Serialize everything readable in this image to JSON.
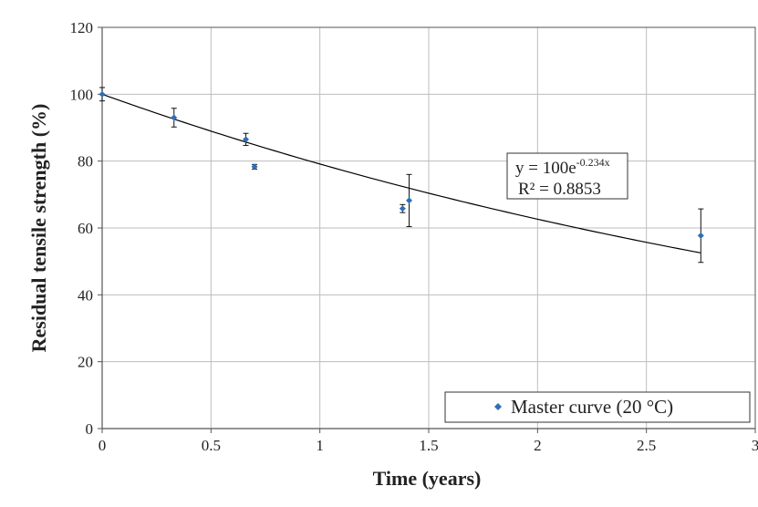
{
  "chart_data": {
    "type": "scatter",
    "xlabel": "Time (years)",
    "ylabel": "Residual tensile strength (%)",
    "xlim": [
      0,
      3
    ],
    "ylim": [
      0,
      120
    ],
    "x_ticks": [
      "0",
      "0.5",
      "1",
      "1.5",
      "2",
      "2.5",
      "3"
    ],
    "y_ticks": [
      "0",
      "20",
      "40",
      "60",
      "80",
      "100",
      "120"
    ],
    "grid": true,
    "legend_position": "bottom-right",
    "colors": {
      "marker": "#2e6fb7",
      "trendline": "#000000",
      "grid": "#bdbdbd"
    },
    "series": [
      {
        "name": "Master curve (20 °C)",
        "points": [
          {
            "x": 0.0,
            "y": 100.0,
            "err": 2.0
          },
          {
            "x": 0.33,
            "y": 93.0,
            "err": 2.8
          },
          {
            "x": 0.66,
            "y": 86.5,
            "err": 1.8
          },
          {
            "x": 0.7,
            "y": 78.3,
            "err": 0.7
          },
          {
            "x": 1.38,
            "y": 65.8,
            "err": 1.2
          },
          {
            "x": 1.41,
            "y": 68.2,
            "err": 7.8
          },
          {
            "x": 2.75,
            "y": 57.7,
            "err": 8.0
          }
        ]
      }
    ],
    "trendline": {
      "type": "exponential",
      "a": 100,
      "b": -0.234,
      "x_from": 0,
      "x_to": 2.75
    },
    "annotation": {
      "eq_base": "y = 100e",
      "eq_exp": "-0.234x",
      "r2": "R² = 0.8853"
    }
  }
}
